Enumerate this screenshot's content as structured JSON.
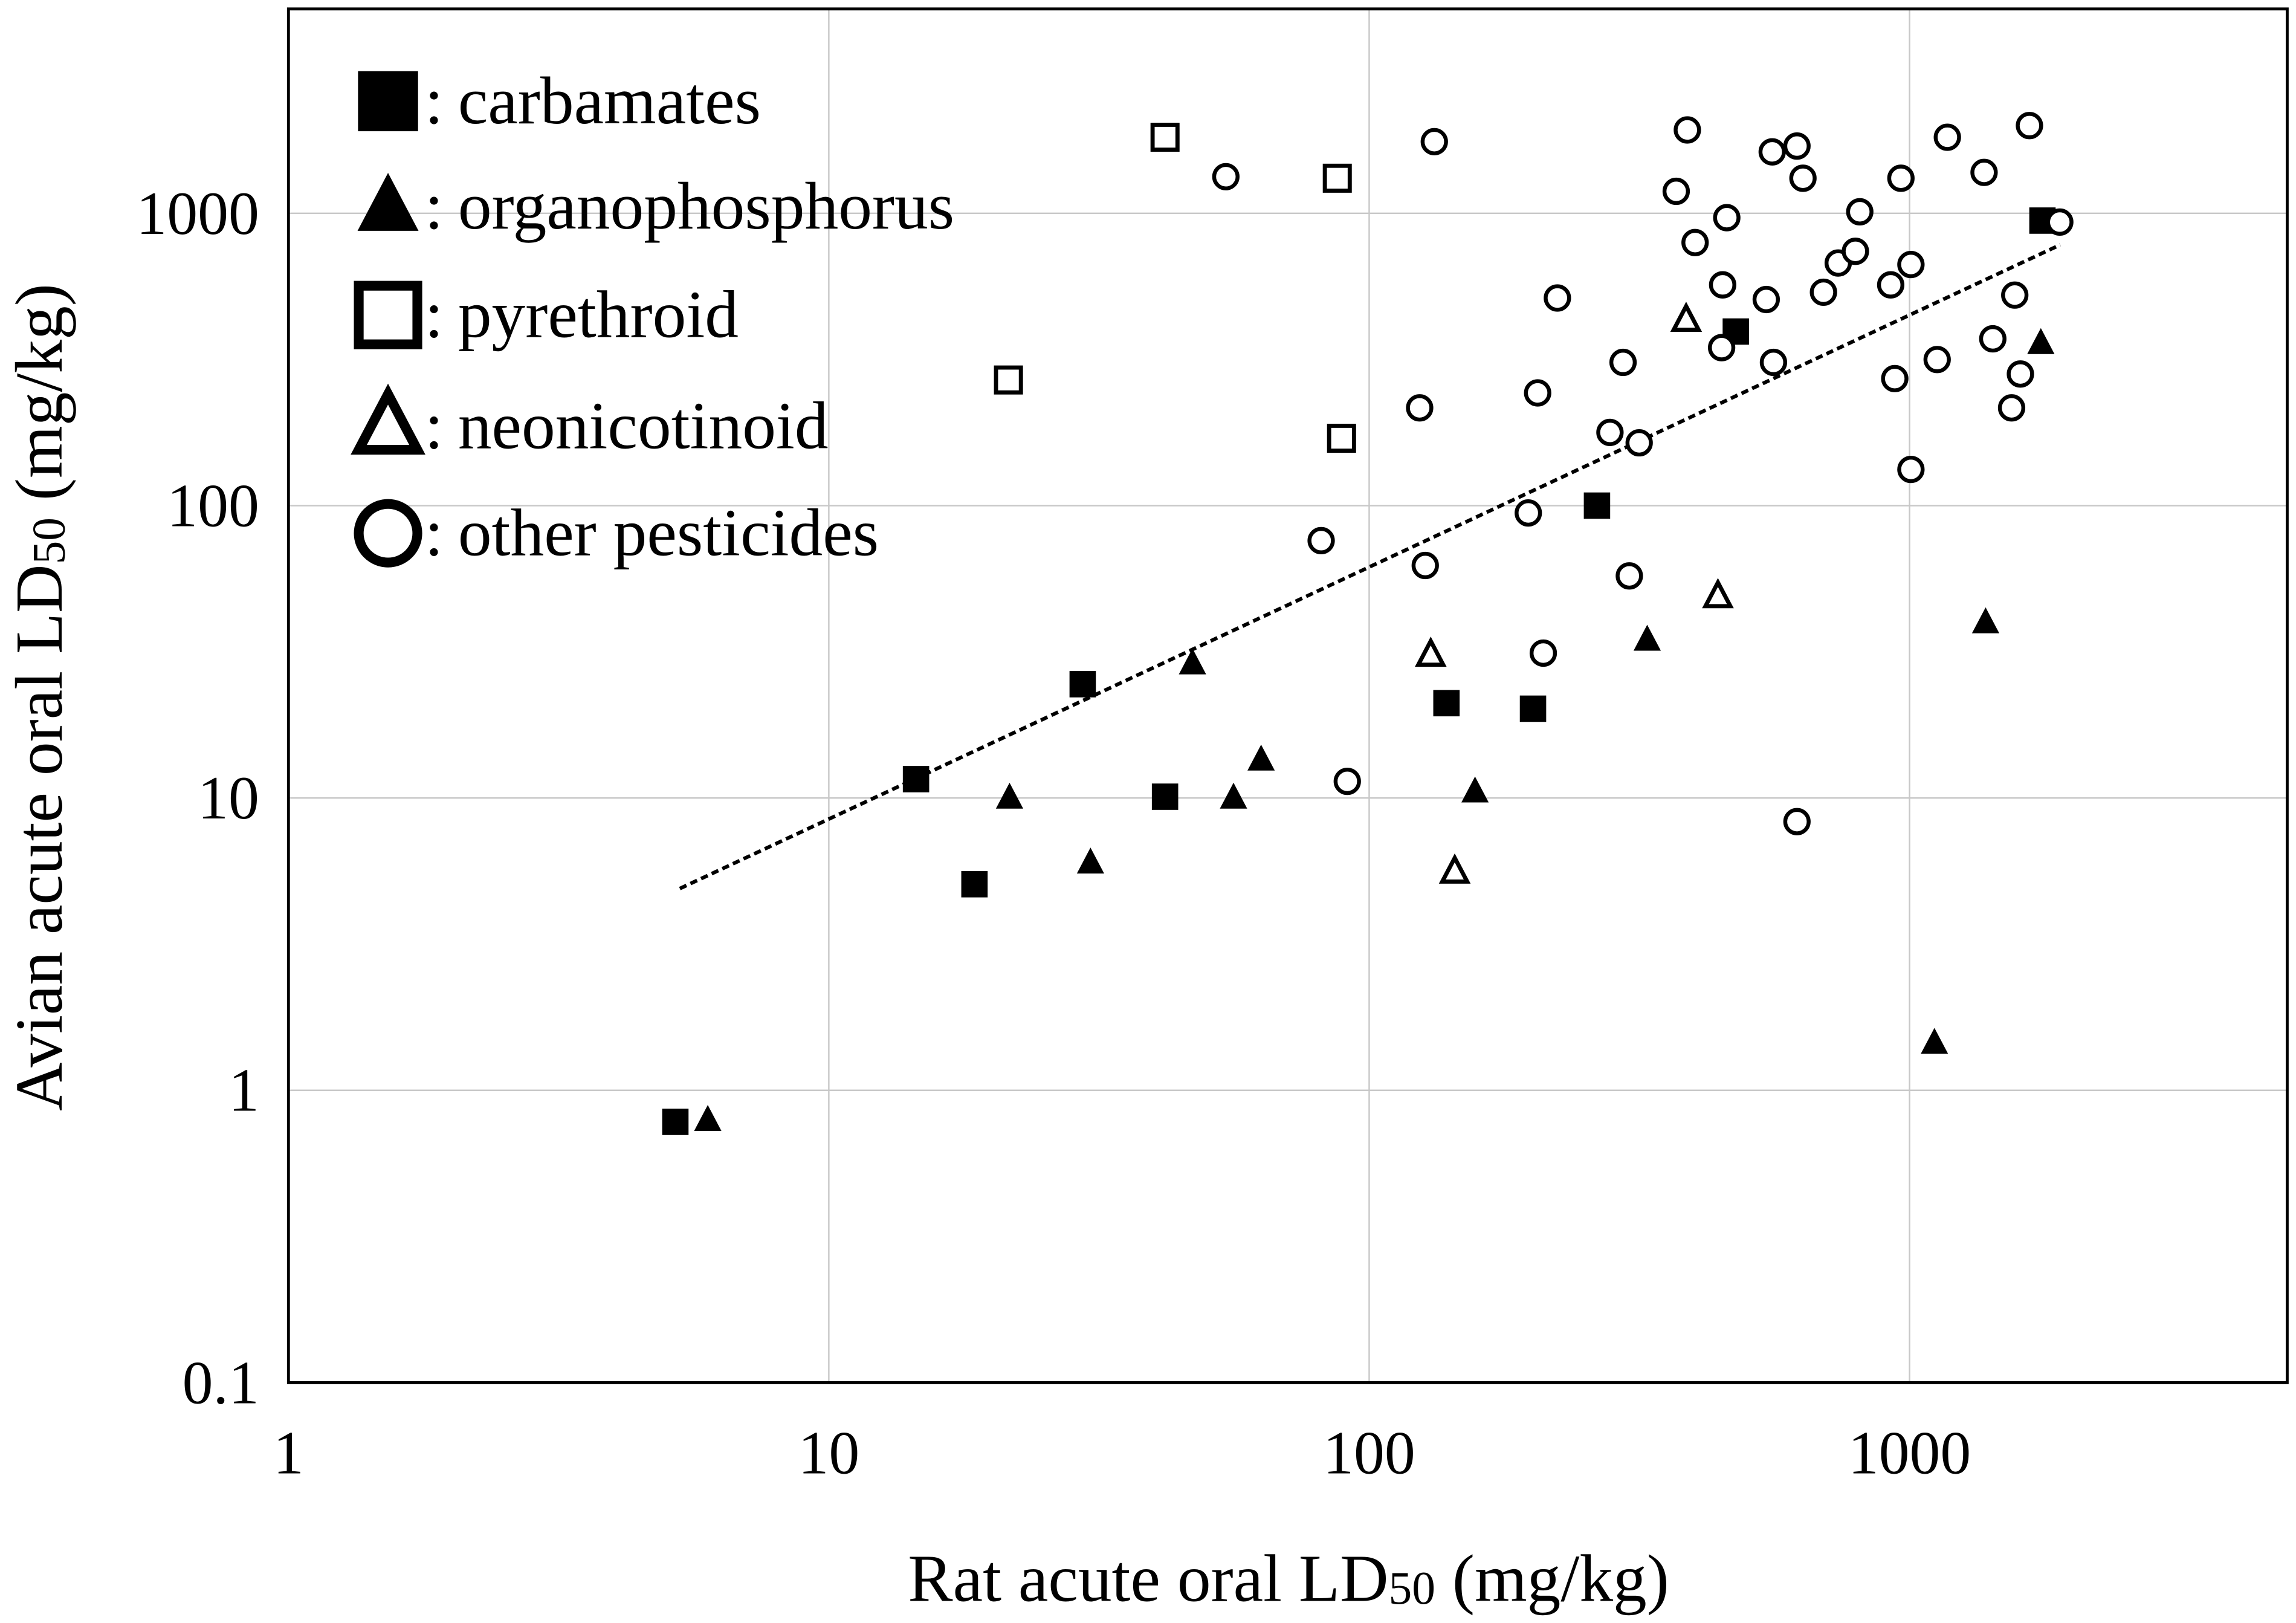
{
  "chart_data": {
    "type": "scatter",
    "x_label_parts": [
      "Rat acute oral LD",
      "50",
      " (mg/kg)"
    ],
    "y_label_parts": [
      "Avian acute oral LD",
      "50",
      " (mg/kg)"
    ],
    "xlog": true,
    "ylog": true,
    "grid": true,
    "legend": "top-left",
    "legend_separator": ":",
    "xlim": [
      1,
      5000
    ],
    "ylim": [
      0.1,
      5000
    ],
    "xticks": [
      1,
      10,
      100,
      1000
    ],
    "yticks": [
      0.1,
      1,
      10,
      100,
      1000
    ],
    "series": [
      {
        "name": "carbamates",
        "color": "#000000",
        "marker": "square",
        "filled": true,
        "x": [
          5.2,
          14.5,
          18.6,
          29.5,
          41.9,
          139,
          201,
          264,
          477,
          1762
        ],
        "values": [
          0.78,
          11.6,
          5.07,
          24.5,
          10.1,
          21.1,
          20.2,
          100,
          394,
          944
        ]
      },
      {
        "name": "organophosphorus",
        "color": "#000000",
        "marker": "triangle",
        "filled": true,
        "x": [
          5.97,
          21.6,
          30.5,
          47.1,
          56.1,
          63.1,
          157,
          327,
          1383,
          1112,
          1750
        ],
        "values": [
          0.79,
          10,
          6.0,
          28.8,
          10,
          13.5,
          10.5,
          34.7,
          39.8,
          1.45,
          359
        ]
      },
      {
        "name": "pyrethroid",
        "color": "#000000",
        "marker": "square",
        "filled": false,
        "x": [
          41.9,
          87.3,
          21.5,
          88.9
        ],
        "values": [
          1820,
          1318,
          269,
          170
        ]
      },
      {
        "name": "neonicotinoid",
        "color": "#000000",
        "marker": "triangle",
        "filled": false,
        "x": [
          130,
          144,
          386,
          442
        ],
        "values": [
          30.9,
          5.6,
          432,
          49
        ]
      },
      {
        "name": "other pesticides",
        "color": "#000000",
        "marker": "circle",
        "filled": false,
        "x": [
          54.3,
          132,
          81.5,
          91.1,
          124,
          127,
          197,
          205,
          210,
          223,
          279,
          295,
          316,
          303,
          370,
          388,
          401,
          451,
          449,
          459,
          543,
          557,
          560,
          619,
          635,
          619,
          693,
          738,
          794,
          809,
          923,
          964,
          939,
          1006,
          1006,
          1125,
          1175,
          1374,
          1426,
          1545,
          1566,
          1604,
          1667,
          1897
        ],
        "values": [
          1334,
          1758,
          75.9,
          11.4,
          216,
          62.4,
          94.4,
          243,
          31.3,
          513,
          178,
          309,
          164,
          57.5,
          1189,
          1928,
          794,
          569,
          347,
          966,
          507,
          1622,
          309,
          1698,
          1318,
          8.3,
          537,
          676,
          741,
          1012,
          569,
          1318,
          272,
          668,
          133,
          316,
          1820,
          1380,
          372,
          216,
          525,
          282,
          1995,
          933
        ]
      }
    ],
    "trendline": {
      "x": [
        5.3,
        1900
      ],
      "y": [
        4.9,
        780
      ]
    }
  }
}
